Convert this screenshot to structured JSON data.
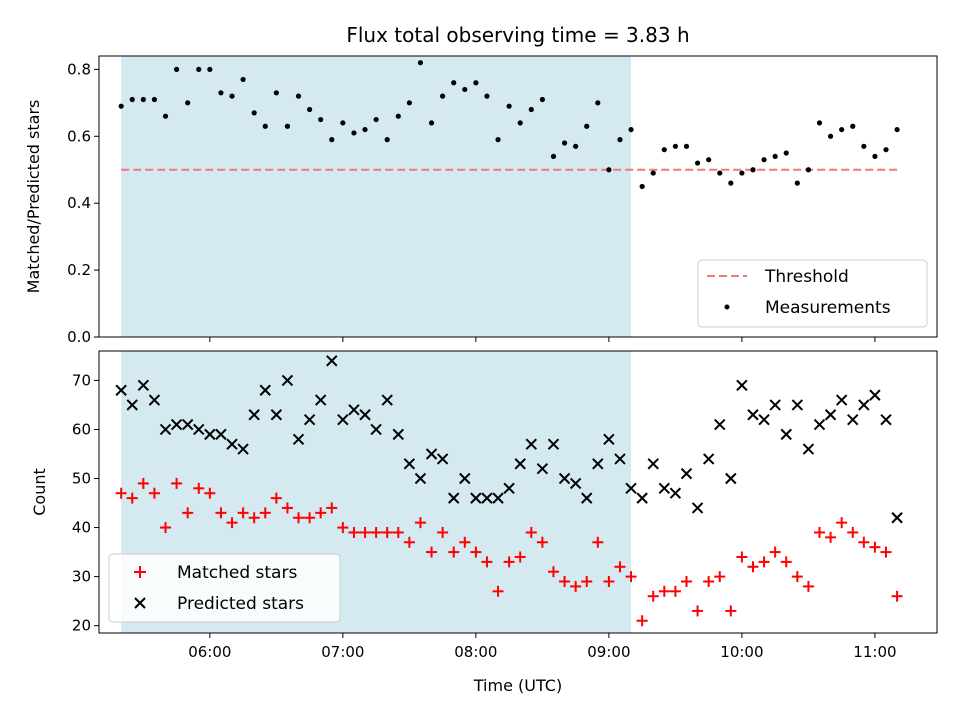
{
  "chart_data": [
    {
      "type": "scatter",
      "title": "Flux total observing time = 3.83 h",
      "ylabel": "Matched/Predicted stars",
      "xlabel": "",
      "xlim": [
        "05:10",
        "11:28"
      ],
      "ylim": [
        0,
        0.84
      ],
      "yticks": [
        "0.0",
        "0.2",
        "0.4",
        "0.6",
        "0.8"
      ],
      "xticks": [
        "06:00",
        "07:00",
        "08:00",
        "09:00",
        "10:00",
        "11:00"
      ],
      "shaded_span": [
        "05:20",
        "09:10"
      ],
      "shaded_color": "#d4eaf0",
      "threshold": {
        "name": "Threshold",
        "value": 0.5,
        "from": "05:20",
        "to": "11:10",
        "color": "#f07878"
      },
      "legend": {
        "position": "lower right",
        "entries": [
          "Threshold",
          "Measurements"
        ]
      },
      "series": [
        {
          "name": "Measurements",
          "color": "#000000",
          "x": [
            "05:20",
            "05:25",
            "05:30",
            "05:35",
            "05:40",
            "05:45",
            "05:50",
            "05:55",
            "06:00",
            "06:05",
            "06:10",
            "06:15",
            "06:20",
            "06:25",
            "06:30",
            "06:35",
            "06:40",
            "06:45",
            "06:50",
            "06:55",
            "07:00",
            "07:05",
            "07:10",
            "07:15",
            "07:20",
            "07:25",
            "07:30",
            "07:35",
            "07:40",
            "07:45",
            "07:50",
            "07:55",
            "08:00",
            "08:05",
            "08:10",
            "08:15",
            "08:20",
            "08:25",
            "08:30",
            "08:35",
            "08:40",
            "08:45",
            "08:50",
            "08:55",
            "09:00",
            "09:05",
            "09:10",
            "09:15",
            "09:20",
            "09:25",
            "09:30",
            "09:35",
            "09:40",
            "09:45",
            "09:50",
            "09:55",
            "10:00",
            "10:05",
            "10:10",
            "10:15",
            "10:20",
            "10:25",
            "10:30",
            "10:35",
            "10:40",
            "10:45",
            "10:50",
            "10:55",
            "11:00",
            "11:05",
            "11:10"
          ],
          "y": [
            0.69,
            0.71,
            0.71,
            0.71,
            0.66,
            0.8,
            0.7,
            0.8,
            0.8,
            0.73,
            0.72,
            0.77,
            0.67,
            0.63,
            0.73,
            0.63,
            0.72,
            0.68,
            0.65,
            0.59,
            0.64,
            0.61,
            0.62,
            0.65,
            0.59,
            0.66,
            0.7,
            0.82,
            0.64,
            0.72,
            0.76,
            0.74,
            0.76,
            0.72,
            0.59,
            0.69,
            0.64,
            0.68,
            0.71,
            0.54,
            0.58,
            0.57,
            0.63,
            0.7,
            0.5,
            0.59,
            0.62,
            0.45,
            0.49,
            0.56,
            0.57,
            0.57,
            0.52,
            0.53,
            0.49,
            0.46,
            0.49,
            0.5,
            0.53,
            0.54,
            0.55,
            0.46,
            0.5,
            0.64,
            0.6,
            0.62,
            0.63,
            0.57,
            0.54,
            0.56,
            0.62
          ]
        }
      ]
    },
    {
      "type": "scatter",
      "title": "",
      "ylabel": "Count",
      "xlabel": "Time (UTC)",
      "xlim": [
        "05:10",
        "11:28"
      ],
      "ylim": [
        18.5,
        76
      ],
      "yticks": [
        "20",
        "30",
        "40",
        "50",
        "60",
        "70"
      ],
      "xticks": [
        "06:00",
        "07:00",
        "08:00",
        "09:00",
        "10:00",
        "11:00"
      ],
      "shaded_span": [
        "05:20",
        "09:10"
      ],
      "shaded_color": "#d4eaf0",
      "legend": {
        "position": "lower left",
        "entries": [
          "Matched stars",
          "Predicted stars"
        ]
      },
      "series": [
        {
          "name": "Matched stars",
          "marker": "+",
          "color": "#ff0000",
          "x": [
            "05:20",
            "05:25",
            "05:30",
            "05:35",
            "05:40",
            "05:45",
            "05:50",
            "05:55",
            "06:00",
            "06:05",
            "06:10",
            "06:15",
            "06:20",
            "06:25",
            "06:30",
            "06:35",
            "06:40",
            "06:45",
            "06:50",
            "06:55",
            "07:00",
            "07:05",
            "07:10",
            "07:15",
            "07:20",
            "07:25",
            "07:30",
            "07:35",
            "07:40",
            "07:45",
            "07:50",
            "07:55",
            "08:00",
            "08:05",
            "08:10",
            "08:15",
            "08:20",
            "08:25",
            "08:30",
            "08:35",
            "08:40",
            "08:45",
            "08:50",
            "08:55",
            "09:00",
            "09:05",
            "09:10",
            "09:15",
            "09:20",
            "09:25",
            "09:30",
            "09:35",
            "09:40",
            "09:45",
            "09:50",
            "09:55",
            "10:00",
            "10:05",
            "10:10",
            "10:15",
            "10:20",
            "10:25",
            "10:30",
            "10:35",
            "10:40",
            "10:45",
            "10:50",
            "10:55",
            "11:00",
            "11:05",
            "11:10"
          ],
          "y": [
            47,
            46,
            49,
            47,
            40,
            49,
            43,
            48,
            47,
            43,
            41,
            43,
            42,
            43,
            46,
            44,
            42,
            42,
            43,
            44,
            40,
            39,
            39,
            39,
            39,
            39,
            37,
            41,
            35,
            39,
            35,
            37,
            35,
            33,
            27,
            33,
            34,
            39,
            37,
            31,
            29,
            28,
            29,
            37,
            29,
            32,
            30,
            21,
            26,
            27,
            27,
            29,
            23,
            29,
            30,
            23,
            34,
            32,
            33,
            35,
            33,
            30,
            28,
            39,
            38,
            41,
            39,
            37,
            36,
            35,
            26
          ]
        },
        {
          "name": "Predicted stars",
          "marker": "x",
          "color": "#000000",
          "x": [
            "05:20",
            "05:25",
            "05:30",
            "05:35",
            "05:40",
            "05:45",
            "05:50",
            "05:55",
            "06:00",
            "06:05",
            "06:10",
            "06:15",
            "06:20",
            "06:25",
            "06:30",
            "06:35",
            "06:40",
            "06:45",
            "06:50",
            "06:55",
            "07:00",
            "07:05",
            "07:10",
            "07:15",
            "07:20",
            "07:25",
            "07:30",
            "07:35",
            "07:40",
            "07:45",
            "07:50",
            "07:55",
            "08:00",
            "08:05",
            "08:10",
            "08:15",
            "08:20",
            "08:25",
            "08:30",
            "08:35",
            "08:40",
            "08:45",
            "08:50",
            "08:55",
            "09:00",
            "09:05",
            "09:10",
            "09:15",
            "09:20",
            "09:25",
            "09:30",
            "09:35",
            "09:40",
            "09:45",
            "09:50",
            "09:55",
            "10:00",
            "10:05",
            "10:10",
            "10:15",
            "10:20",
            "10:25",
            "10:30",
            "10:35",
            "10:40",
            "10:45",
            "10:50",
            "10:55",
            "11:00",
            "11:05",
            "11:10"
          ],
          "y": [
            68,
            65,
            69,
            66,
            60,
            61,
            61,
            60,
            59,
            59,
            57,
            56,
            63,
            68,
            63,
            70,
            58,
            62,
            66,
            74,
            62,
            64,
            63,
            60,
            66,
            59,
            53,
            50,
            55,
            54,
            46,
            50,
            46,
            46,
            46,
            48,
            53,
            57,
            52,
            57,
            50,
            49,
            46,
            53,
            58,
            54,
            48,
            46,
            53,
            48,
            47,
            51,
            44,
            54,
            61,
            50,
            69,
            63,
            62,
            65,
            59,
            65,
            56,
            61,
            63,
            66,
            62,
            65,
            67,
            62,
            42
          ]
        }
      ]
    }
  ]
}
